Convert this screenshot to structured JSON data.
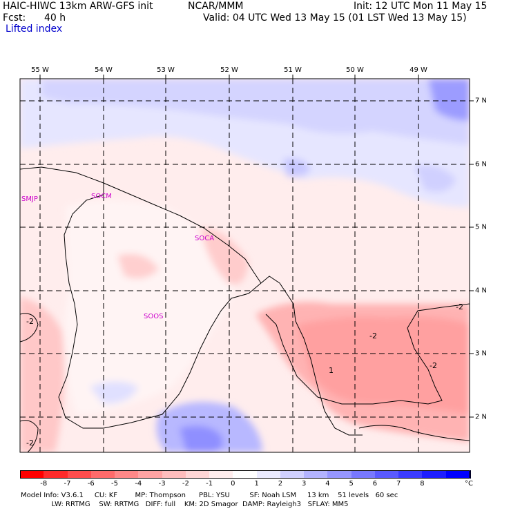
{
  "header": {
    "model_title": "HAIC-HIWC 13km ARW-GFS init",
    "org": "NCAR/MMM",
    "init_label": "Init: 12 UTC Mon 11 May 15",
    "fcst_label": "Fcst:",
    "fcst_hours": "40 h",
    "valid_label": "Valid: 04 UTC Wed 13 May 15 (01 LST Wed 13 May 15)",
    "field_name": "Lifted index"
  },
  "map": {
    "longitude_labels": [
      "55 W",
      "54 W",
      "53 W",
      "52 W",
      "51 W",
      "50 W",
      "49 W"
    ],
    "latitude_labels": [
      "7 N",
      "6 N",
      "5 N",
      "4 N",
      "3 N",
      "2 N"
    ],
    "stations": [
      "SMJP",
      "SOCM",
      "SOCA",
      "SOOS"
    ],
    "contour_labels": [
      "-2",
      "-2",
      "-2",
      "-2",
      "-2",
      "1"
    ]
  },
  "colorbar": {
    "colors": [
      "#ff0000",
      "#ff2b2b",
      "#ff4d4d",
      "#ff6b6b",
      "#ff8888",
      "#ffa3a3",
      "#ffbdbd",
      "#ffd6d6",
      "#ffeded",
      "#ffffff",
      "#ebebff",
      "#d0d0ff",
      "#b3b3ff",
      "#9696ff",
      "#7878ff",
      "#5a5aff",
      "#3c3cff",
      "#1e1eff",
      "#0000ff"
    ],
    "tick_labels": [
      "-8",
      "-7",
      "-6",
      "-5",
      "-4",
      "-3",
      "-2",
      "-1",
      "0",
      "1",
      "2",
      "3",
      "4",
      "5",
      "6",
      "7",
      "8"
    ],
    "unit": "°C"
  },
  "footer": {
    "line1": "Model Info: V3.6.1     CU: KF        MP: Thompson      PBL: YSU         SF: Noah LSM     13 km    51 levels   60 sec",
    "line2": "              LW: RRTMG    SW: RRTMG   DIFF: full    KM: 2D Smagor  DAMP: Rayleigh3   SFLAY: MM5"
  }
}
